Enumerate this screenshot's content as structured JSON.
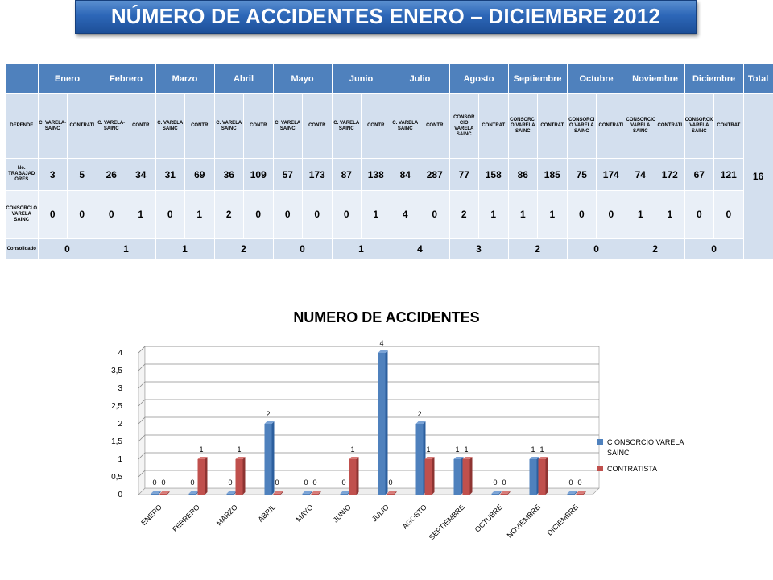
{
  "banner": {
    "title": "NÚMERO DE ACCIDENTES ENERO – DICIEMBRE  2012"
  },
  "table": {
    "months": [
      "Enero",
      "Febrero",
      "Marzo",
      "Abril",
      "Mayo",
      "Junio",
      "Julio",
      "Agosto",
      "Septiembre",
      "Octubre",
      "Noviembre",
      "Diciembre"
    ],
    "total_header": "Total",
    "row_labels": {
      "depende": "DEPENDE",
      "trabajadores": "No. TRABAJAD ORES",
      "consorcio": "CONSORCI O VARELA SAINC",
      "consolidado": "Consolidado"
    },
    "subheaders": [
      [
        "C. VARELA-SAINC",
        "CONTRATI"
      ],
      [
        "C. VARELA-SAINC",
        "CONTR"
      ],
      [
        "C. VARELA SAINC",
        "CONTR"
      ],
      [
        "C. VARELA SAINC",
        "CONTR"
      ],
      [
        "C. VARELA SAINC",
        "CONTR"
      ],
      [
        "C. VARELA SAINC",
        "CONTR"
      ],
      [
        "C. VARELA SAINC",
        "CONTR"
      ],
      [
        "CONSOR CIO VARELA SAINC",
        "CONTRAT"
      ],
      [
        "CONSORCI O VARELA SAINC",
        "CONTRAT"
      ],
      [
        "CONSORCI O VARELA SAINC",
        "CONTRATI"
      ],
      [
        "CONSORCIO VARELA SAINC",
        "CONTRATI"
      ],
      [
        "CONSORCIO VARELA SAINC",
        "CONTRAT"
      ]
    ],
    "trabajadores": [
      [
        3,
        5
      ],
      [
        26,
        34
      ],
      [
        31,
        69
      ],
      [
        36,
        109
      ],
      [
        57,
        173
      ],
      [
        87,
        138
      ],
      [
        84,
        287
      ],
      [
        77,
        158
      ],
      [
        86,
        185
      ],
      [
        75,
        174
      ],
      [
        74,
        172
      ],
      [
        67,
        121
      ]
    ],
    "accidentes": [
      [
        0,
        0
      ],
      [
        0,
        1
      ],
      [
        0,
        1
      ],
      [
        2,
        0
      ],
      [
        0,
        0
      ],
      [
        0,
        1
      ],
      [
        4,
        0
      ],
      [
        2,
        1
      ],
      [
        1,
        1
      ],
      [
        0,
        0
      ],
      [
        1,
        1
      ],
      [
        0,
        0
      ]
    ],
    "consolidado": [
      0,
      1,
      1,
      2,
      0,
      1,
      4,
      3,
      2,
      0,
      2,
      0
    ],
    "total": 16
  },
  "chart_data": {
    "type": "bar",
    "title": "NUMERO DE ACCIDENTES",
    "categories": [
      "ENERO",
      "FEBRERO",
      "MARZO",
      "ABRIL",
      "MAYO",
      "JUNIO",
      "JULIO",
      "AGOSTO",
      "SEPTIEMBRE",
      "OCTUBRE",
      "NOVIEMBRE",
      "DICIEMBRE"
    ],
    "series": [
      {
        "name": "C ONSORCIO VARELA SAINC",
        "values": [
          0,
          0,
          0,
          2,
          0,
          0,
          4,
          2,
          1,
          0,
          1,
          0
        ],
        "color": "#4f81bd"
      },
      {
        "name": "CONTRATISTA",
        "values": [
          0,
          1,
          1,
          0,
          0,
          1,
          0,
          1,
          1,
          0,
          1,
          0
        ],
        "color": "#c0504d"
      }
    ],
    "yticks": [
      "0",
      "0,5",
      "1",
      "1,5",
      "2",
      "2,5",
      "3",
      "3,5",
      "4"
    ],
    "ylim": [
      0,
      4
    ],
    "grid": true,
    "legend": "right",
    "style": "3d"
  }
}
